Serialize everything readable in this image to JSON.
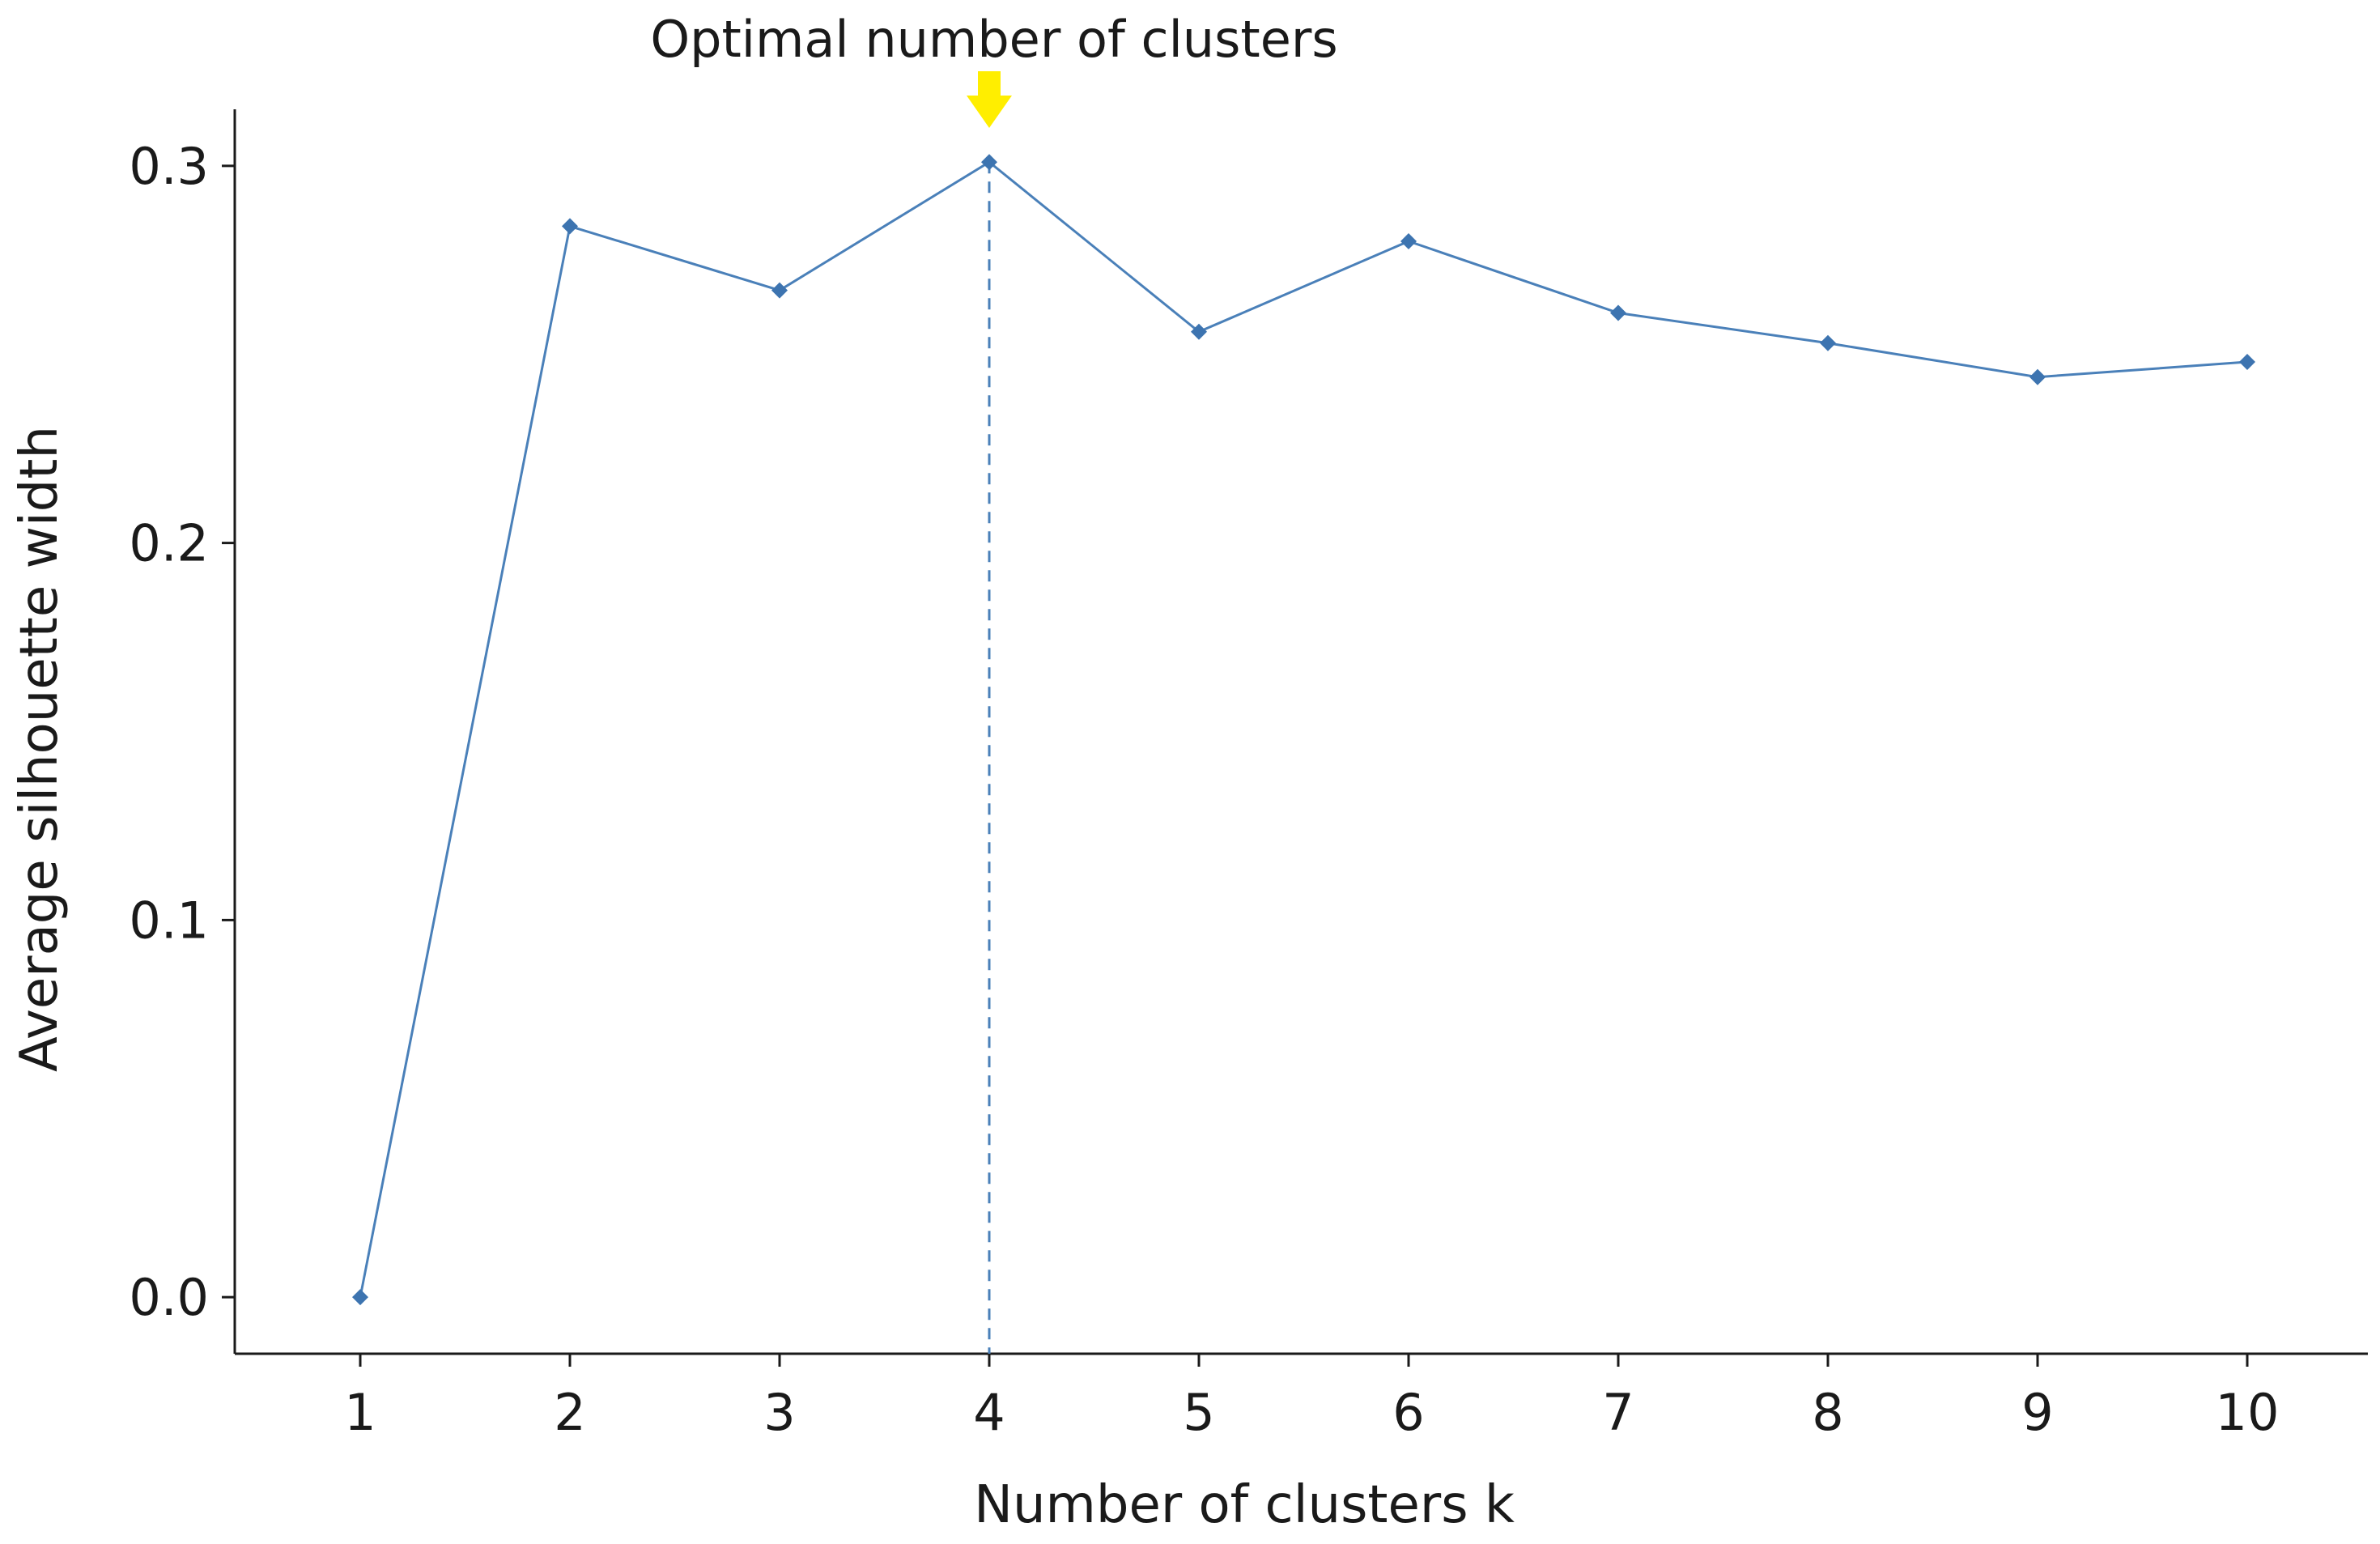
{
  "chart_data": {
    "type": "line",
    "title": "",
    "xlabel": "Number of clusters k",
    "ylabel": "Average silhouette width",
    "categories": [
      "1",
      "2",
      "3",
      "4",
      "5",
      "6",
      "7",
      "8",
      "9",
      "10"
    ],
    "series": [
      {
        "values": [
          0.0,
          0.284,
          0.267,
          0.301,
          0.256,
          0.28,
          0.261,
          0.253,
          0.244,
          0.248
        ]
      }
    ],
    "yticks": [
      "0.0",
      "0.1",
      "0.2",
      "0.3"
    ],
    "ylim": [
      -0.015,
      0.315
    ],
    "grid": false,
    "legend": "none",
    "optimal_k": "4",
    "annotation": "Optimal number of clusters",
    "colors": {
      "line": "#4a80b9",
      "marker": "#3d74b0",
      "arrow": "#ffee00",
      "axis": "#1a1a1a"
    }
  }
}
